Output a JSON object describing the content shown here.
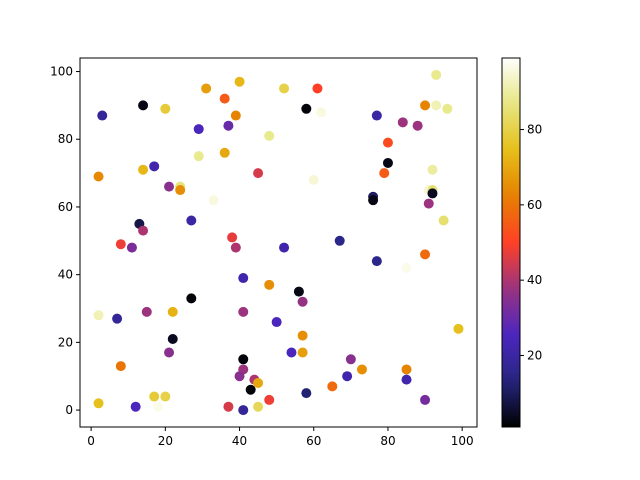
{
  "chart_data": {
    "type": "scatter",
    "title": "",
    "xlabel": "",
    "ylabel": "",
    "xlim": [
      -3,
      104
    ],
    "ylim": [
      -5,
      104
    ],
    "xticks": [
      0,
      20,
      40,
      60,
      80,
      100
    ],
    "yticks": [
      0,
      20,
      40,
      60,
      80,
      100
    ],
    "grid": false,
    "colormap": "CMRmap",
    "colorbar": {
      "min": 1,
      "max": 99,
      "ticks": [
        20,
        40,
        60,
        80
      ]
    },
    "points": [
      {
        "x": 3,
        "y": 87,
        "c": 18
      },
      {
        "x": 14,
        "y": 90,
        "c": 3
      },
      {
        "x": 20,
        "y": 89,
        "c": 78
      },
      {
        "x": 31,
        "y": 95,
        "c": 68
      },
      {
        "x": 36,
        "y": 92,
        "c": 55
      },
      {
        "x": 40,
        "y": 97,
        "c": 73
      },
      {
        "x": 52,
        "y": 95,
        "c": 80
      },
      {
        "x": 58,
        "y": 89,
        "c": 2
      },
      {
        "x": 61,
        "y": 95,
        "c": 50
      },
      {
        "x": 62,
        "y": 88,
        "c": 96
      },
      {
        "x": 93,
        "y": 99,
        "c": 88
      },
      {
        "x": 93,
        "y": 90,
        "c": 92
      },
      {
        "x": 96,
        "y": 89,
        "c": 88
      },
      {
        "x": 90,
        "y": 90,
        "c": 63
      },
      {
        "x": 77,
        "y": 87,
        "c": 20
      },
      {
        "x": 84,
        "y": 85,
        "c": 38
      },
      {
        "x": 88,
        "y": 84,
        "c": 38
      },
      {
        "x": 80,
        "y": 79,
        "c": 52
      },
      {
        "x": 80,
        "y": 73,
        "c": 3
      },
      {
        "x": 79,
        "y": 70,
        "c": 55
      },
      {
        "x": 29,
        "y": 83,
        "c": 25
      },
      {
        "x": 37,
        "y": 84,
        "c": 30
      },
      {
        "x": 39,
        "y": 87,
        "c": 63
      },
      {
        "x": 48,
        "y": 81,
        "c": 88
      },
      {
        "x": 29,
        "y": 75,
        "c": 88
      },
      {
        "x": 36,
        "y": 76,
        "c": 70
      },
      {
        "x": 17,
        "y": 72,
        "c": 22
      },
      {
        "x": 14,
        "y": 71,
        "c": 73
      },
      {
        "x": 2,
        "y": 69,
        "c": 64
      },
      {
        "x": 21,
        "y": 66,
        "c": 35
      },
      {
        "x": 24,
        "y": 66,
        "c": 86
      },
      {
        "x": 24,
        "y": 65,
        "c": 65
      },
      {
        "x": 33,
        "y": 62,
        "c": 96
      },
      {
        "x": 45,
        "y": 70,
        "c": 45
      },
      {
        "x": 60,
        "y": 68,
        "c": 95
      },
      {
        "x": 76,
        "y": 63,
        "c": 10
      },
      {
        "x": 76,
        "y": 62,
        "c": 3
      },
      {
        "x": 92,
        "y": 71,
        "c": 90
      },
      {
        "x": 91,
        "y": 65,
        "c": 95
      },
      {
        "x": 92,
        "y": 65,
        "c": 85
      },
      {
        "x": 92,
        "y": 64,
        "c": 4
      },
      {
        "x": 91,
        "y": 61,
        "c": 38
      },
      {
        "x": 95,
        "y": 56,
        "c": 85
      },
      {
        "x": 13,
        "y": 55,
        "c": 8
      },
      {
        "x": 14,
        "y": 53,
        "c": 40
      },
      {
        "x": 27,
        "y": 56,
        "c": 20
      },
      {
        "x": 8,
        "y": 49,
        "c": 48
      },
      {
        "x": 11,
        "y": 48,
        "c": 33
      },
      {
        "x": 38,
        "y": 51,
        "c": 47
      },
      {
        "x": 39,
        "y": 48,
        "c": 40
      },
      {
        "x": 52,
        "y": 48,
        "c": 22
      },
      {
        "x": 67,
        "y": 50,
        "c": 15
      },
      {
        "x": 90,
        "y": 46,
        "c": 58
      },
      {
        "x": 77,
        "y": 44,
        "c": 15
      },
      {
        "x": 85,
        "y": 42,
        "c": 97
      },
      {
        "x": 41,
        "y": 39,
        "c": 22
      },
      {
        "x": 48,
        "y": 37,
        "c": 65
      },
      {
        "x": 56,
        "y": 35,
        "c": 3
      },
      {
        "x": 57,
        "y": 32,
        "c": 37
      },
      {
        "x": 27,
        "y": 33,
        "c": 2
      },
      {
        "x": 2,
        "y": 28,
        "c": 92
      },
      {
        "x": 7,
        "y": 27,
        "c": 18
      },
      {
        "x": 15,
        "y": 29,
        "c": 38
      },
      {
        "x": 22,
        "y": 29,
        "c": 72
      },
      {
        "x": 41,
        "y": 29,
        "c": 38
      },
      {
        "x": 50,
        "y": 26,
        "c": 25
      },
      {
        "x": 57,
        "y": 22,
        "c": 65
      },
      {
        "x": 99,
        "y": 24,
        "c": 75
      },
      {
        "x": 22,
        "y": 21,
        "c": 4
      },
      {
        "x": 21,
        "y": 17,
        "c": 35
      },
      {
        "x": 41,
        "y": 15,
        "c": 2
      },
      {
        "x": 54,
        "y": 17,
        "c": 25
      },
      {
        "x": 57,
        "y": 17,
        "c": 68
      },
      {
        "x": 70,
        "y": 15,
        "c": 35
      },
      {
        "x": 8,
        "y": 13,
        "c": 60
      },
      {
        "x": 41,
        "y": 12,
        "c": 38
      },
      {
        "x": 40,
        "y": 10,
        "c": 35
      },
      {
        "x": 44,
        "y": 9,
        "c": 40
      },
      {
        "x": 45,
        "y": 8,
        "c": 70
      },
      {
        "x": 43,
        "y": 6,
        "c": 2
      },
      {
        "x": 73,
        "y": 12,
        "c": 65
      },
      {
        "x": 85,
        "y": 12,
        "c": 63
      },
      {
        "x": 69,
        "y": 10,
        "c": 22
      },
      {
        "x": 85,
        "y": 9,
        "c": 22
      },
      {
        "x": 65,
        "y": 7,
        "c": 58
      },
      {
        "x": 58,
        "y": 5,
        "c": 12
      },
      {
        "x": 17,
        "y": 4,
        "c": 78
      },
      {
        "x": 20,
        "y": 4,
        "c": 80
      },
      {
        "x": 48,
        "y": 3,
        "c": 48
      },
      {
        "x": 90,
        "y": 3,
        "c": 32
      },
      {
        "x": 2,
        "y": 2,
        "c": 75
      },
      {
        "x": 12,
        "y": 1,
        "c": 25
      },
      {
        "x": 18,
        "y": 1,
        "c": 97
      },
      {
        "x": 37,
        "y": 1,
        "c": 45
      },
      {
        "x": 41,
        "y": 0,
        "c": 18
      },
      {
        "x": 45,
        "y": 1,
        "c": 82
      }
    ]
  }
}
